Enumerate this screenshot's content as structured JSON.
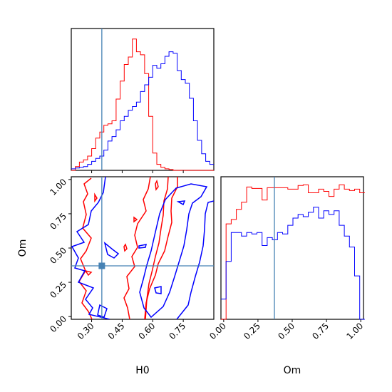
{
  "chart_data": [
    {
      "type": "histogram",
      "panel": "H0 marginal",
      "bin_edges": [
        0.2,
        0.22,
        0.24,
        0.26,
        0.28,
        0.3,
        0.32,
        0.34,
        0.36,
        0.38,
        0.4,
        0.42,
        0.44,
        0.46,
        0.48,
        0.5,
        0.52,
        0.54,
        0.56,
        0.58,
        0.6,
        0.62,
        0.64,
        0.66,
        0.68,
        0.7,
        0.72,
        0.74,
        0.76,
        0.78,
        0.8,
        0.82,
        0.84,
        0.86,
        0.88,
        0.9
      ],
      "series": [
        {
          "color": "#ff0000",
          "counts": [
            0,
            5,
            11,
            14,
            19,
            29,
            43,
            51,
            60,
            62,
            66,
            95,
            119,
            141,
            151,
            175,
            158,
            154,
            129,
            72,
            23,
            8,
            4,
            2,
            1,
            0,
            0,
            0,
            0,
            0,
            0,
            0,
            0,
            0,
            0
          ]
        },
        {
          "color": "#0000ff",
          "counts": [
            2,
            3,
            4,
            5,
            8,
            12,
            16,
            19,
            27,
            39,
            45,
            54,
            66,
            72,
            80,
            85,
            91,
            105,
            114,
            124,
            140,
            136,
            142,
            152,
            158,
            156,
            133,
            121,
            116,
            96,
            66,
            40,
            22,
            12,
            8
          ]
        }
      ],
      "truth_line": 0.35,
      "xlim": [
        0.2,
        0.9
      ]
    },
    {
      "type": "contour",
      "panel": "H0 vs Om joint",
      "series": [
        {
          "color": "#ff0000",
          "levels": 2
        },
        {
          "color": "#0000ff",
          "levels": 2
        }
      ],
      "truth_point": {
        "x": 0.35,
        "y": 0.37
      },
      "xlabel": "H0",
      "ylabel": "Om",
      "xticks": [
        "0.30",
        "0.45",
        "0.60",
        "0.75"
      ],
      "yticks": [
        "0.00",
        "0.25",
        "0.50",
        "0.75",
        "1.00"
      ],
      "xlim": [
        0.2,
        0.9
      ],
      "ylim": [
        -0.02,
        1.02
      ]
    },
    {
      "type": "histogram",
      "panel": "Om marginal",
      "bin_edges": [
        -0.02,
        0.0175,
        0.055,
        0.0925,
        0.13,
        0.1675,
        0.205,
        0.2425,
        0.28,
        0.3175,
        0.355,
        0.3925,
        0.43,
        0.4675,
        0.505,
        0.5425,
        0.58,
        0.6175,
        0.655,
        0.6925,
        0.73,
        0.7675,
        0.805,
        0.8425,
        0.88,
        0.9175,
        0.955,
        0.9925,
        1.03
      ],
      "series": [
        {
          "color": "#ff0000",
          "counts": [
            0,
            132,
            138,
            152,
            162,
            183,
            181,
            181,
            165,
            182,
            182,
            182,
            182,
            180,
            180,
            185,
            186,
            175,
            175,
            180,
            177,
            170,
            180,
            186,
            180,
            178,
            180,
            175
          ]
        },
        {
          "color": "#0000ff",
          "counts": [
            28,
            80,
            120,
            120,
            115,
            120,
            118,
            120,
            102,
            113,
            110,
            120,
            118,
            130,
            140,
            145,
            142,
            148,
            155,
            140,
            150,
            145,
            150,
            130,
            115,
            100,
            60,
            0
          ]
        }
      ],
      "truth_line": 0.37,
      "xlabel": "Om",
      "xticks": [
        "0.00",
        "0.25",
        "0.50",
        "0.75",
        "1.00"
      ],
      "xlim": [
        -0.02,
        1.02
      ]
    }
  ]
}
